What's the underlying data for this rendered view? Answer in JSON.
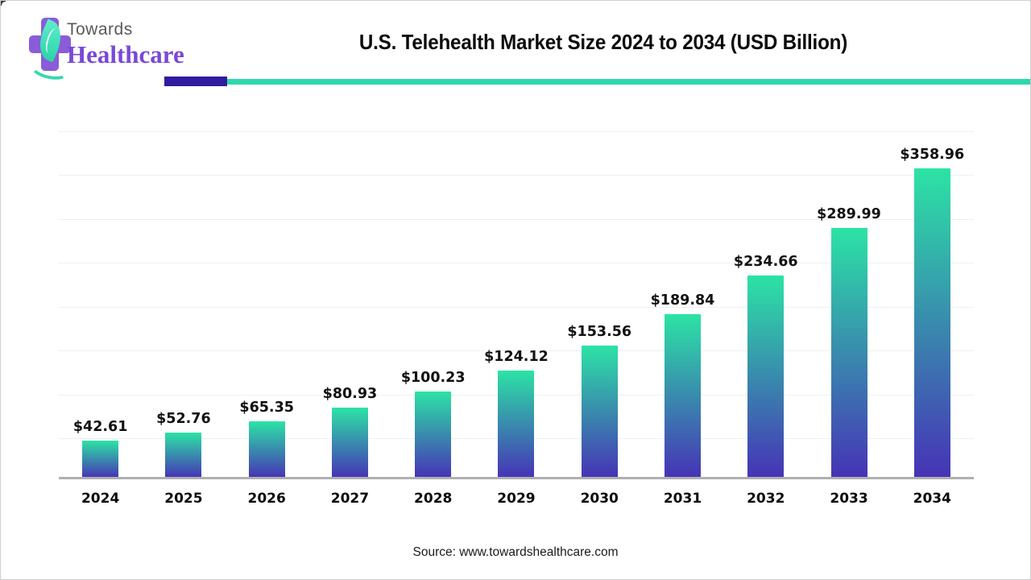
{
  "logo": {
    "word1": "Towards",
    "word2": "Healthcare",
    "colors": {
      "cross": "#8a5cd8",
      "leaf": "#3fe0b8",
      "word1": "#58595b",
      "word2": "#7948d8"
    }
  },
  "header": {
    "title": "U.S. Telehealth Market Size 2024 to 2034 (USD Billion)",
    "divider": {
      "accent_color": "#321b9e",
      "line_color": "#2fd7ac"
    }
  },
  "chart_data": {
    "type": "bar",
    "title": "U.S. Telehealth Market Size 2024 to 2034 (USD Billion)",
    "categories": [
      "2024",
      "2025",
      "2026",
      "2027",
      "2028",
      "2029",
      "2030",
      "2031",
      "2032",
      "2033",
      "2034"
    ],
    "values": [
      42.61,
      52.76,
      65.35,
      80.93,
      100.23,
      124.12,
      153.56,
      189.84,
      234.66,
      289.99,
      358.96
    ],
    "value_prefix": "$",
    "unit": "USD Billion",
    "xlabel": "",
    "ylabel": "",
    "ylim": [
      0,
      400
    ],
    "grid": true,
    "grid_step": 50,
    "y_axis_labels_visible": false,
    "legend": false,
    "data_label_position": "above bars",
    "bar_color_top": "#2ce3a5",
    "bar_color_bottom": "#4633b6",
    "axis_line_color": "#b0b0b0"
  },
  "footer": {
    "source": "Source: www.towardshealthcare.com"
  }
}
